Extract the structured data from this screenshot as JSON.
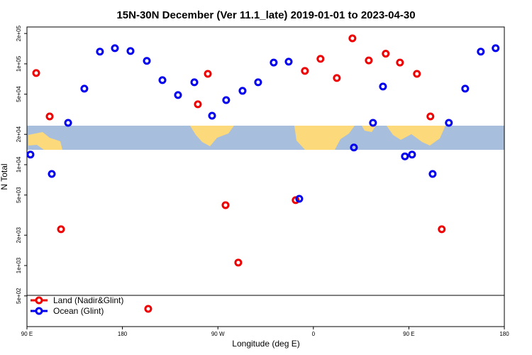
{
  "chart_data": {
    "type": "scatter",
    "title": "15N-30N December (Ver 11.1_late)   2019-01-01 to 2023-04-30",
    "x_label": "Longitude (deg E)",
    "y_label": "N Total",
    "xlim": [
      90,
      540
    ],
    "ylim": [
      248,
      232000
    ],
    "y_log": true,
    "legend": "lower left",
    "xticks": [
      {
        "value": 90,
        "label": "90 E"
      },
      180,
      {
        "value": 270,
        "label": "90 W"
      },
      {
        "value": 360,
        "label": "0"
      },
      {
        "value": 450,
        "label": "90 E"
      },
      {
        "value": 540,
        "label": "180"
      }
    ],
    "yticks": [
      {
        "value": 500,
        "label": "5e+02"
      },
      {
        "value": 1000,
        "label": "1e+03"
      },
      {
        "value": 2000,
        "label": "2e+03"
      },
      {
        "value": 5000,
        "label": "5e+03"
      },
      {
        "value": 10000,
        "label": "1e+04"
      },
      {
        "value": 20000,
        "label": "2e+04"
      },
      {
        "value": 50000,
        "label": "5e+04"
      },
      {
        "value": 100000,
        "label": "1e+05"
      },
      {
        "value": 200000,
        "label": "2e+05"
      }
    ],
    "series": [
      {
        "name": "Land (Nadir&Glint)",
        "color": "#ee0000",
        "x": [
          98.7,
          111.4,
          122.1,
          204.3,
          251.1,
          260.5,
          277.2,
          289.2,
          343.3,
          352.0,
          366.7,
          382.1,
          396.8,
          412.2,
          428.2,
          441.6,
          457.6,
          470.3,
          481.0
        ],
        "values": [
          81000,
          30100,
          2290,
          372,
          39700,
          79600,
          3970,
          1070,
          4450,
          85100,
          112000,
          72300,
          179000,
          108000,
          126000,
          103000,
          79600,
          30100,
          2290
        ]
      },
      {
        "name": "Ocean (Glint)",
        "color": "#0000ee",
        "x": [
          93.3,
          113.4,
          128.8,
          144.1,
          158.8,
          172.9,
          187.6,
          203.0,
          217.7,
          232.4,
          247.8,
          264.5,
          277.8,
          293.2,
          307.9,
          322.6,
          336.7,
          346.7,
          398.2,
          416.2,
          425.6,
          446.3,
          453.0,
          472.4,
          487.7,
          503.1,
          517.8,
          531.8
        ],
        "values": [
          12600,
          8090,
          26000,
          56700,
          132000,
          143000,
          134000,
          107000,
          68900,
          49000,
          65600,
          30600,
          43700,
          54000,
          65600,
          103000,
          105000,
          4590,
          14800,
          26000,
          59600,
          12100,
          12600,
          8090,
          26000,
          56700,
          132000,
          143000
        ]
      }
    ]
  }
}
